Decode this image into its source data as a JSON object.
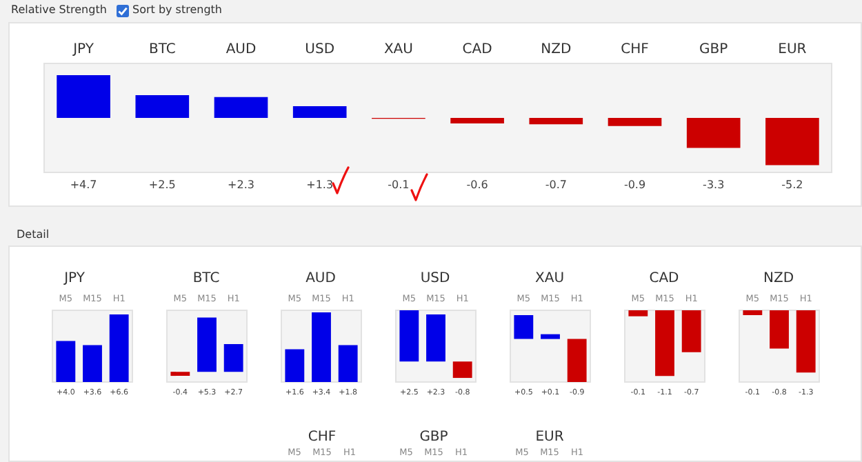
{
  "chart_data": [
    {
      "type": "bar",
      "title": "Relative Strength",
      "annotations": [
        "Sort by strength"
      ],
      "categories": [
        "JPY",
        "BTC",
        "AUD",
        "USD",
        "XAU",
        "CAD",
        "NZD",
        "CHF",
        "GBP",
        "EUR"
      ],
      "values": [
        4.7,
        2.5,
        2.3,
        1.3,
        -0.1,
        -0.6,
        -0.7,
        -0.9,
        -3.3,
        -5.2
      ],
      "value_labels": [
        "+4.7",
        "+2.5",
        "+2.3",
        "+1.3",
        "-0.1",
        "-0.6",
        "-0.7",
        "-0.9",
        "-3.3",
        "-5.2"
      ],
      "colors": [
        "#0000e8",
        "#0000e8",
        "#0000e8",
        "#0000e8",
        "#cc0000",
        "#cc0000",
        "#cc0000",
        "#cc0000",
        "#cc0000",
        "#cc0000"
      ]
    },
    {
      "type": "bar",
      "title": "JPY",
      "annotations": [
        "Detail"
      ],
      "categories": [
        "M5",
        "M15",
        "H1"
      ],
      "values": [
        4.0,
        3.6,
        6.6
      ],
      "value_labels": [
        "+4.0",
        "+3.6",
        "+6.6"
      ],
      "colors": [
        "#0000e8",
        "#0000e8",
        "#0000e8"
      ]
    },
    {
      "type": "bar",
      "title": "BTC",
      "categories": [
        "M5",
        "M15",
        "H1"
      ],
      "values": [
        -0.4,
        5.3,
        2.7
      ],
      "value_labels": [
        "-0.4",
        "+5.3",
        "+2.7"
      ],
      "colors": [
        "#cc0000",
        "#0000e8",
        "#0000e8"
      ]
    },
    {
      "type": "bar",
      "title": "AUD",
      "categories": [
        "M5",
        "M15",
        "H1"
      ],
      "values": [
        1.6,
        3.4,
        1.8
      ],
      "value_labels": [
        "+1.6",
        "+3.4",
        "+1.8"
      ],
      "colors": [
        "#0000e8",
        "#0000e8",
        "#0000e8"
      ]
    },
    {
      "type": "bar",
      "title": "USD",
      "categories": [
        "M5",
        "M15",
        "H1"
      ],
      "values": [
        2.5,
        2.3,
        -0.8
      ],
      "value_labels": [
        "+2.5",
        "+2.3",
        "-0.8"
      ],
      "colors": [
        "#0000e8",
        "#0000e8",
        "#cc0000"
      ]
    },
    {
      "type": "bar",
      "title": "XAU",
      "categories": [
        "M5",
        "M15",
        "H1"
      ],
      "values": [
        0.5,
        0.1,
        -0.9
      ],
      "value_labels": [
        "+0.5",
        "+0.1",
        "-0.9"
      ],
      "colors": [
        "#0000e8",
        "#0000e8",
        "#cc0000"
      ]
    },
    {
      "type": "bar",
      "title": "CAD",
      "categories": [
        "M5",
        "M15",
        "H1"
      ],
      "values": [
        -0.1,
        -1.1,
        -0.7
      ],
      "value_labels": [
        "-0.1",
        "-1.1",
        "-0.7"
      ],
      "colors": [
        "#cc0000",
        "#cc0000",
        "#cc0000"
      ]
    },
    {
      "type": "bar",
      "title": "NZD",
      "categories": [
        "M5",
        "M15",
        "H1"
      ],
      "values": [
        -0.1,
        -0.8,
        -1.3
      ],
      "value_labels": [
        "-0.1",
        "-0.8",
        "-1.3"
      ],
      "colors": [
        "#cc0000",
        "#cc0000",
        "#cc0000"
      ]
    },
    {
      "type": "other",
      "title": "CHF",
      "annotations": [
        "M5",
        "M15",
        "H1"
      ]
    },
    {
      "type": "other",
      "title": "GBP",
      "annotations": [
        "M5",
        "M15",
        "H1"
      ]
    },
    {
      "type": "other",
      "title": "EUR",
      "annotations": [
        "M5",
        "M15",
        "H1"
      ]
    }
  ]
}
